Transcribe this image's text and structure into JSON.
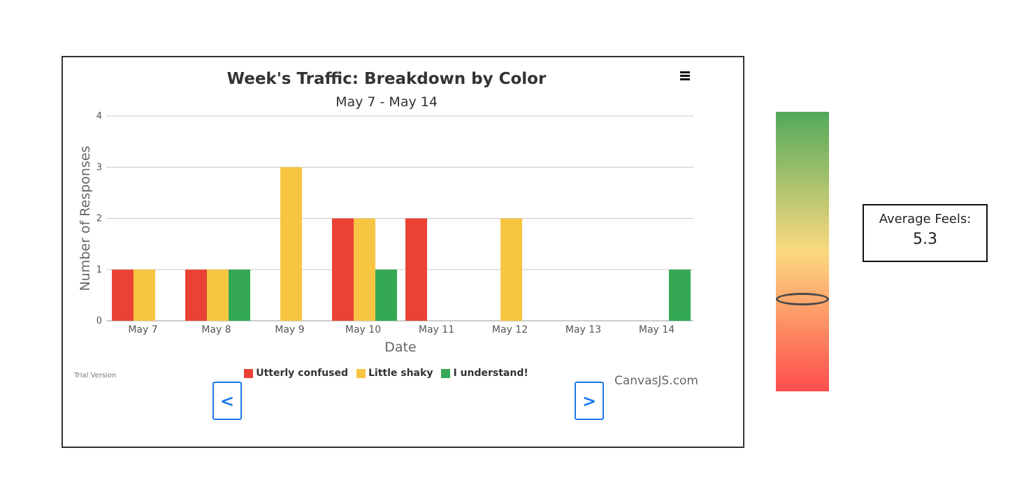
{
  "chart_data": {
    "type": "bar",
    "title": "Week's Traffic: Breakdown by Color",
    "subtitle": "May 7 - May 14",
    "xlabel": "Date",
    "ylabel": "Number of Responses",
    "categories": [
      "May 7",
      "May 8",
      "May 9",
      "May 10",
      "May 11",
      "May 12",
      "May 13",
      "May 14"
    ],
    "series": [
      {
        "name": "Utterly confused",
        "color": "#ea4335",
        "values": [
          1,
          1,
          0,
          2,
          2,
          0,
          0,
          0
        ]
      },
      {
        "name": "Little shaky",
        "color": "#f8c543",
        "values": [
          1,
          1,
          3,
          2,
          0,
          2,
          0,
          0
        ]
      },
      {
        "name": "I understand!",
        "color": "#34a853",
        "values": [
          0,
          1,
          0,
          1,
          0,
          0,
          0,
          1
        ]
      }
    ],
    "ylim": [
      0,
      4
    ],
    "yticks": [
      0,
      1,
      2,
      3,
      4
    ],
    "grid": true,
    "legend": "bottom"
  },
  "chart_meta": {
    "trial_text": "Trial Version",
    "credit_text": "CanvasJS.com",
    "prev_label": "<",
    "next_label": ">",
    "menu_icon": "hamburger-menu-icon"
  },
  "gauge": {
    "colors": [
      "#52a95a",
      "#fbd97f",
      "#ff4d4d"
    ],
    "marker_fraction": 0.67
  },
  "average": {
    "label": "Average Feels:",
    "value": "5.3"
  }
}
